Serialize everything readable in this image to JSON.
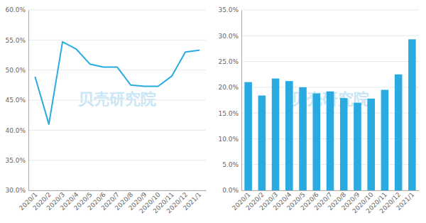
{
  "chart_data": [
    {
      "type": "line",
      "categories": [
        "2020/1",
        "2020/2",
        "2020/3",
        "2020/4",
        "2020/5",
        "2020/6",
        "2020/7",
        "2020/8",
        "2020/9",
        "2020/10",
        "2020/11",
        "2020/12",
        "2021/1"
      ],
      "values": [
        0.488,
        0.41,
        0.547,
        0.535,
        0.51,
        0.505,
        0.505,
        0.475,
        0.473,
        0.473,
        0.49,
        0.53,
        0.533
      ],
      "color": "#29ABE2",
      "ylim": [
        0.3,
        0.6
      ],
      "yticks": [
        {
          "value": 0.3,
          "label": "30.0%"
        },
        {
          "value": 0.35,
          "label": "35.0%"
        },
        {
          "value": 0.4,
          "label": "40.0%"
        },
        {
          "value": 0.45,
          "label": "45.0%"
        },
        {
          "value": 0.5,
          "label": "50.0%"
        },
        {
          "value": 0.55,
          "label": "55.0%"
        },
        {
          "value": 0.6,
          "label": "60.0%"
        }
      ],
      "grid": true,
      "annotations": [
        "贝壳研究院"
      ]
    },
    {
      "type": "bar",
      "categories": [
        "2020/1",
        "2020/2",
        "2020/3",
        "2020/4",
        "2020/5",
        "2020/6",
        "2020/7",
        "2020/8",
        "2020/9",
        "2020/10",
        "2020/11",
        "2020/12",
        "2021/1"
      ],
      "values": [
        0.21,
        0.184,
        0.217,
        0.212,
        0.2,
        0.188,
        0.192,
        0.179,
        0.17,
        0.178,
        0.195,
        0.225,
        0.293
      ],
      "color": "#29ABE2",
      "ylim": [
        0.0,
        0.35
      ],
      "yticks": [
        {
          "value": 0.0,
          "label": "0.0%"
        },
        {
          "value": 0.05,
          "label": "5.0%"
        },
        {
          "value": 0.1,
          "label": "10.0%"
        },
        {
          "value": 0.15,
          "label": "15.0%"
        },
        {
          "value": 0.2,
          "label": "20.0%"
        },
        {
          "value": 0.25,
          "label": "25.0%"
        },
        {
          "value": 0.3,
          "label": "30.0%"
        },
        {
          "value": 0.35,
          "label": "35.0%"
        }
      ],
      "grid": true,
      "annotations": [
        "贝壳研究院"
      ]
    }
  ]
}
